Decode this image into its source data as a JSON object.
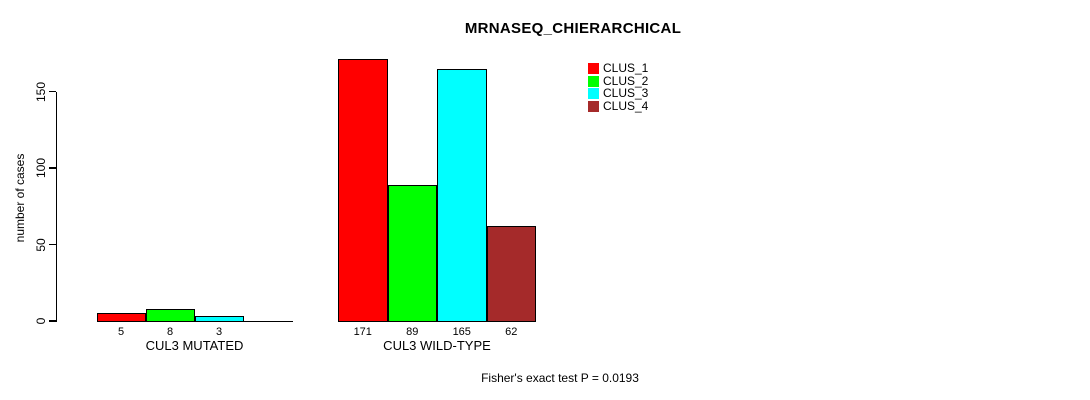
{
  "figure": {
    "background": "#ffffff",
    "axis_color": "#000000",
    "bar_border_color": "#000000"
  },
  "chart_data": {
    "type": "bar",
    "title": "MRNASEQ_CHIERARCHICAL",
    "xlabel": "",
    "ylabel": "number of cases",
    "categories": [
      "CUL3 MUTATED",
      "CUL3 WILD-TYPE"
    ],
    "series": [
      {
        "name": "CLUS_1",
        "color": "#ff0000",
        "values": [
          5,
          171
        ]
      },
      {
        "name": "CLUS_2",
        "color": "#00ff00",
        "values": [
          8,
          89
        ]
      },
      {
        "name": "CLUS_3",
        "color": "#00ffff",
        "values": [
          3,
          165
        ]
      },
      {
        "name": "CLUS_4",
        "color": "#a52a2a",
        "values": [
          0,
          62
        ]
      }
    ],
    "bar_value_labels": [
      [
        "5",
        "8",
        "3",
        ""
      ],
      [
        "171",
        "89",
        "165",
        "62"
      ]
    ],
    "yticks": [
      0,
      50,
      100,
      150
    ],
    "ylim": [
      0,
      175
    ],
    "grid": false,
    "legend_position": "top-right-inside",
    "legend_entries": [
      "CLUS_1",
      "CLUS_2",
      "CLUS_3",
      "CLUS_4"
    ],
    "annotation": "Fisher's exact test P = 0.0193"
  }
}
